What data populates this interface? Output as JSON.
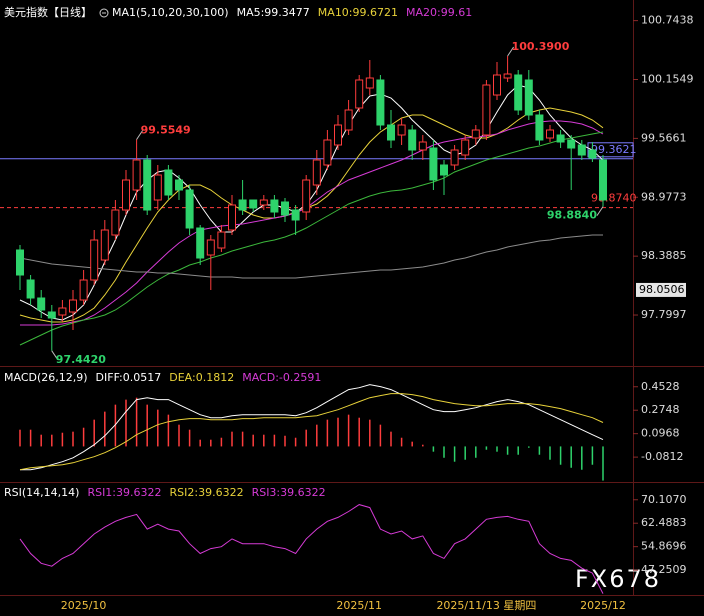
{
  "chart_data": [
    {
      "type": "candlestick",
      "title": "美元指数【日线】",
      "subtitle": "MA1(5,10,20,30,100)",
      "categories": [
        null,
        null,
        null,
        null,
        null,
        null,
        "2025/10",
        null,
        null,
        null,
        null,
        null,
        null,
        null,
        null,
        null,
        null,
        null,
        null,
        null,
        null,
        null,
        null,
        null,
        null,
        null,
        null,
        null,
        null,
        null,
        null,
        null,
        "2025/11",
        null,
        null,
        null,
        null,
        null,
        null,
        null,
        null,
        null,
        null,
        null,
        "2025/11/13 星期四",
        null,
        null,
        null,
        null,
        null,
        null,
        null,
        null,
        null,
        null,
        "2025/12"
      ],
      "open": [
        98.45,
        98.15,
        97.97,
        97.83,
        97.8,
        97.83,
        97.95,
        98.15,
        98.35,
        98.6,
        98.85,
        99.05,
        99.35,
        98.95,
        99.25,
        99.15,
        99.05,
        98.67,
        98.4,
        98.47,
        98.65,
        98.95,
        98.95,
        98.9,
        98.95,
        98.93,
        98.85,
        98.83,
        99.1,
        99.3,
        99.5,
        99.65,
        99.87,
        100.07,
        100.15,
        99.7,
        99.6,
        99.65,
        99.45,
        99.47,
        99.3,
        99.3,
        99.4,
        99.57,
        99.6,
        100.0,
        100.17,
        100.2,
        100.15,
        99.8,
        99.57,
        99.6,
        99.55,
        99.5,
        99.45,
        99.35
      ],
      "high": [
        98.5,
        98.2,
        98.05,
        97.9,
        97.95,
        98.05,
        98.25,
        98.65,
        98.75,
        98.95,
        99.25,
        99.5549,
        99.4,
        99.3,
        99.3,
        99.2,
        99.1,
        98.7,
        98.6,
        98.7,
        99.0,
        99.15,
        98.95,
        99.0,
        99.0,
        98.97,
        98.9,
        99.2,
        99.45,
        99.65,
        99.8,
        99.95,
        100.2,
        100.35,
        100.2,
        99.85,
        99.77,
        99.7,
        99.6,
        99.55,
        99.35,
        99.5,
        99.6,
        99.7,
        100.15,
        100.33,
        100.39,
        100.25,
        100.25,
        99.85,
        99.7,
        99.65,
        99.6,
        99.55,
        99.53,
        99.4
      ],
      "low": [
        98.05,
        97.9,
        97.77,
        97.442,
        97.73,
        97.65,
        97.9,
        98.1,
        98.3,
        98.55,
        98.8,
        98.95,
        98.8,
        98.85,
        98.95,
        98.95,
        98.6,
        98.3,
        98.05,
        98.43,
        98.6,
        98.8,
        98.83,
        98.85,
        98.77,
        98.73,
        98.6,
        98.75,
        99.0,
        99.25,
        99.45,
        99.6,
        99.83,
        100.0,
        99.65,
        99.47,
        99.5,
        99.35,
        99.35,
        99.05,
        99.0,
        99.25,
        99.35,
        99.5,
        99.55,
        99.95,
        100.13,
        99.8,
        99.75,
        99.5,
        99.53,
        99.47,
        99.05,
        99.35,
        99.33,
        98.884
      ],
      "close": [
        98.2,
        97.97,
        97.85,
        97.77,
        97.87,
        97.95,
        98.15,
        98.55,
        98.65,
        98.85,
        99.15,
        99.35,
        98.85,
        99.2,
        99.0,
        99.05,
        98.67,
        98.37,
        98.55,
        98.63,
        98.9,
        98.85,
        98.87,
        98.95,
        98.83,
        98.8,
        98.75,
        99.15,
        99.35,
        99.55,
        99.7,
        99.85,
        100.15,
        100.17,
        99.7,
        99.55,
        99.7,
        99.45,
        99.53,
        99.15,
        99.2,
        99.45,
        99.55,
        99.65,
        100.1,
        100.2,
        100.21,
        99.85,
        99.8,
        99.55,
        99.65,
        99.53,
        99.47,
        99.4,
        99.37,
        98.95
      ],
      "up_color": "#ff3d3d",
      "down_color": "#2ed36b",
      "series": [
        {
          "name": "MA5:99.3477",
          "color": "#ffffff",
          "values": [
            97.95,
            97.9,
            97.83,
            97.77,
            97.75,
            97.8,
            97.9,
            98.1,
            98.33,
            98.55,
            98.8,
            99.03,
            99.15,
            99.23,
            99.25,
            99.17,
            99.07,
            98.9,
            98.75,
            98.63,
            98.63,
            98.73,
            98.83,
            98.9,
            98.9,
            98.87,
            98.83,
            98.9,
            99.05,
            99.27,
            99.5,
            99.7,
            99.87,
            99.99,
            100.01,
            99.97,
            99.87,
            99.75,
            99.65,
            99.55,
            99.45,
            99.4,
            99.43,
            99.5,
            99.65,
            99.83,
            100.0,
            100.1,
            100.07,
            99.95,
            99.8,
            99.68,
            99.57,
            99.5,
            99.45,
            99.3477
          ]
        },
        {
          "name": "MA10:99.6721",
          "color": "#e8d23a",
          "values": [
            97.8,
            97.77,
            97.75,
            97.73,
            97.73,
            97.75,
            97.8,
            97.87,
            98.0,
            98.15,
            98.33,
            98.5,
            98.67,
            98.83,
            98.95,
            99.05,
            99.1,
            99.1,
            99.05,
            98.97,
            98.9,
            98.85,
            98.8,
            98.77,
            98.77,
            98.79,
            98.83,
            98.87,
            98.91,
            98.99,
            99.1,
            99.25,
            99.4,
            99.53,
            99.63,
            99.7,
            99.77,
            99.8,
            99.8,
            99.75,
            99.7,
            99.65,
            99.6,
            99.57,
            99.57,
            99.61,
            99.67,
            99.75,
            99.82,
            99.85,
            99.87,
            99.85,
            99.83,
            99.8,
            99.75,
            99.6721
          ]
        },
        {
          "name": "MA20:99.61",
          "color": "#d63bd6",
          "values": [
            97.7,
            97.7,
            97.7,
            97.7,
            97.71,
            97.73,
            97.75,
            97.8,
            97.87,
            97.95,
            98.03,
            98.12,
            98.23,
            98.33,
            98.43,
            98.52,
            98.59,
            98.65,
            98.67,
            98.69,
            98.7,
            98.71,
            98.73,
            98.75,
            98.77,
            98.79,
            98.82,
            98.87,
            98.95,
            99.03,
            99.09,
            99.15,
            99.19,
            99.23,
            99.27,
            99.31,
            99.35,
            99.4,
            99.45,
            99.5,
            99.53,
            99.55,
            99.57,
            99.58,
            99.59,
            99.61,
            99.65,
            99.68,
            99.71,
            99.73,
            99.74,
            99.74,
            99.73,
            99.71,
            99.67,
            99.61
          ]
        },
        {
          "color": "#3cb83c",
          "values": [
            97.5,
            97.55,
            97.6,
            97.65,
            97.69,
            97.72,
            97.75,
            97.77,
            97.8,
            97.85,
            97.92,
            98.0,
            98.08,
            98.15,
            98.21,
            98.25,
            98.3,
            98.33,
            98.37,
            98.4,
            98.44,
            98.47,
            98.5,
            98.53,
            98.55,
            98.58,
            98.62,
            98.67,
            98.73,
            98.79,
            98.85,
            98.91,
            98.95,
            98.99,
            99.02,
            99.04,
            99.05,
            99.07,
            99.1,
            99.13,
            99.17,
            99.23,
            99.27,
            99.31,
            99.35,
            99.38,
            99.41,
            99.44,
            99.47,
            99.49,
            99.52,
            99.55,
            99.57,
            99.59,
            99.61,
            99.63
          ]
        },
        {
          "color": "#8c8c8c",
          "values": [
            98.37,
            98.35,
            98.33,
            98.31,
            98.3,
            98.29,
            98.28,
            98.27,
            98.26,
            98.25,
            98.24,
            98.23,
            98.23,
            98.22,
            98.22,
            98.21,
            98.2,
            98.19,
            98.18,
            98.18,
            98.18,
            98.17,
            98.17,
            98.17,
            98.17,
            98.17,
            98.17,
            98.18,
            98.19,
            98.2,
            98.21,
            98.22,
            98.23,
            98.24,
            98.25,
            98.25,
            98.26,
            98.27,
            98.28,
            98.3,
            98.32,
            98.35,
            98.37,
            98.4,
            98.43,
            98.45,
            98.48,
            98.5,
            98.52,
            98.54,
            98.55,
            98.57,
            98.58,
            98.59,
            98.6,
            98.6
          ]
        }
      ],
      "annotations": [
        {
          "text": "100.3900",
          "value": 100.39,
          "at": "high"
        },
        {
          "text": "99.5549",
          "value": 99.5549,
          "at": "high"
        },
        {
          "text": "97.4420",
          "value": 97.442,
          "at": "low"
        },
        {
          "text": "98.8840",
          "value": 98.884,
          "at": "low"
        }
      ],
      "price_lines": [
        {
          "label": "99.3621",
          "value": 99.3621,
          "color": "#7b7bff",
          "style": "solid"
        },
        {
          "label": "98.8740",
          "value": 98.874,
          "color": "#ff3d3d",
          "style": "dashed"
        }
      ],
      "price_tags": [
        {
          "label": "98.0506",
          "value": 98.0506
        }
      ],
      "ylim": [
        97.3,
        100.9
      ],
      "yticks": [
        100.7438,
        100.1549,
        99.5661,
        98.9773,
        98.3885,
        97.7997
      ]
    },
    {
      "type": "macd",
      "title": "MACD(26,12,9)",
      "bars": {
        "name": "MACD:-0.2591",
        "color": "#d63bd6",
        "up_color": "#ff3d3d",
        "down_color": "#2ed36b",
        "values": [
          0.127,
          0.127,
          0.089,
          0.089,
          0.104,
          0.112,
          0.142,
          0.203,
          0.264,
          0.317,
          0.355,
          0.37,
          0.317,
          0.279,
          0.241,
          0.165,
          0.127,
          0.051,
          0.051,
          0.066,
          0.112,
          0.112,
          0.089,
          0.089,
          0.089,
          0.081,
          0.066,
          0.127,
          0.165,
          0.203,
          0.218,
          0.241,
          0.218,
          0.203,
          0.165,
          0.112,
          0.066,
          0.036,
          0.013,
          -0.04,
          -0.086,
          -0.116,
          -0.101,
          -0.086,
          -0.025,
          -0.04,
          -0.063,
          -0.063,
          -0.01,
          -0.063,
          -0.101,
          -0.139,
          -0.162,
          -0.177,
          -0.139,
          -0.2591
        ]
      },
      "series": [
        {
          "name": "DIFF:0.0517",
          "color": "#ffffff",
          "values": [
            -0.177,
            -0.177,
            -0.162,
            -0.139,
            -0.116,
            -0.086,
            -0.04,
            0.013,
            0.081,
            0.165,
            0.264,
            0.355,
            0.37,
            0.355,
            0.355,
            0.317,
            0.279,
            0.241,
            0.218,
            0.218,
            0.233,
            0.241,
            0.241,
            0.241,
            0.241,
            0.241,
            0.233,
            0.256,
            0.294,
            0.34,
            0.386,
            0.431,
            0.446,
            0.469,
            0.454,
            0.431,
            0.393,
            0.355,
            0.317,
            0.279,
            0.264,
            0.264,
            0.279,
            0.294,
            0.317,
            0.34,
            0.355,
            0.34,
            0.317,
            0.279,
            0.241,
            0.203,
            0.165,
            0.127,
            0.089,
            0.0517
          ]
        },
        {
          "name": "DEA:0.1812",
          "color": "#e8d23a",
          "values": [
            -0.177,
            -0.162,
            -0.154,
            -0.147,
            -0.139,
            -0.124,
            -0.101,
            -0.078,
            -0.048,
            -0.01,
            0.036,
            0.089,
            0.127,
            0.165,
            0.188,
            0.203,
            0.211,
            0.211,
            0.203,
            0.203,
            0.203,
            0.211,
            0.211,
            0.218,
            0.218,
            0.218,
            0.218,
            0.226,
            0.233,
            0.256,
            0.279,
            0.309,
            0.34,
            0.37,
            0.386,
            0.401,
            0.401,
            0.393,
            0.378,
            0.355,
            0.34,
            0.325,
            0.317,
            0.309,
            0.309,
            0.317,
            0.325,
            0.325,
            0.325,
            0.317,
            0.302,
            0.287,
            0.264,
            0.241,
            0.218,
            0.1812
          ]
        }
      ],
      "ylim": [
        -0.27,
        0.58
      ],
      "yticks": [
        0.4528,
        0.2748,
        0.0968,
        -0.0812
      ]
    },
    {
      "type": "line",
      "title": "RSI(14,14,14)",
      "series": [
        {
          "name": "RSI1:39.6322",
          "color": "#d63bd6",
          "values": [
            57.41,
            52.65,
            49.47,
            48.52,
            51.06,
            52.65,
            55.82,
            59.0,
            61.22,
            63.12,
            64.39,
            65.35,
            60.58,
            62.17,
            60.58,
            59.95,
            55.82,
            52.65,
            54.23,
            54.87,
            57.41,
            55.82,
            55.82,
            55.82,
            54.87,
            54.23,
            52.65,
            57.41,
            60.58,
            63.12,
            64.39,
            66.3,
            68.52,
            67.57,
            60.58,
            59.0,
            59.95,
            57.41,
            58.36,
            52.65,
            51.06,
            55.82,
            57.41,
            60.58,
            63.76,
            64.39,
            64.71,
            63.76,
            63.12,
            55.82,
            52.65,
            51.06,
            50.42,
            47.89,
            46.3,
            39.6322
          ]
        }
      ],
      "legend": [
        {
          "label": "RSI2:39.6322",
          "color": "#e8d23a"
        },
        {
          "label": "RSI3:39.6322",
          "color": "#d63bd6"
        }
      ],
      "ylim": [
        39.5,
        74.9
      ],
      "yticks": [
        {
          "value": 70.107,
          "label": "70.1070"
        },
        62.4883,
        54.8696,
        47.2509
      ]
    }
  ],
  "watermark": "FX678"
}
